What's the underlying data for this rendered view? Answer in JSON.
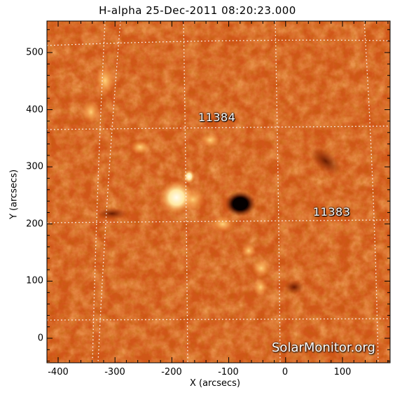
{
  "title": "H-alpha 25-Dec-2011 08:20:23.000",
  "x_axis": {
    "label": "X (arcsecs)",
    "ticks": [
      "-400",
      "-300",
      "-200",
      "-100",
      "0",
      "100"
    ]
  },
  "y_axis": {
    "label": "Y (arcsecs)",
    "ticks": [
      "0",
      "100",
      "200",
      "300",
      "400",
      "500"
    ]
  },
  "regions": [
    {
      "label": "11384"
    },
    {
      "label": "11383"
    }
  ],
  "watermark": "SolarMonitor.org",
  "colors": {
    "background": "#d2561a",
    "dark_feature": "#2a0a00",
    "bright_feature": "#ffe9a8",
    "grid": "#ffffff"
  }
}
